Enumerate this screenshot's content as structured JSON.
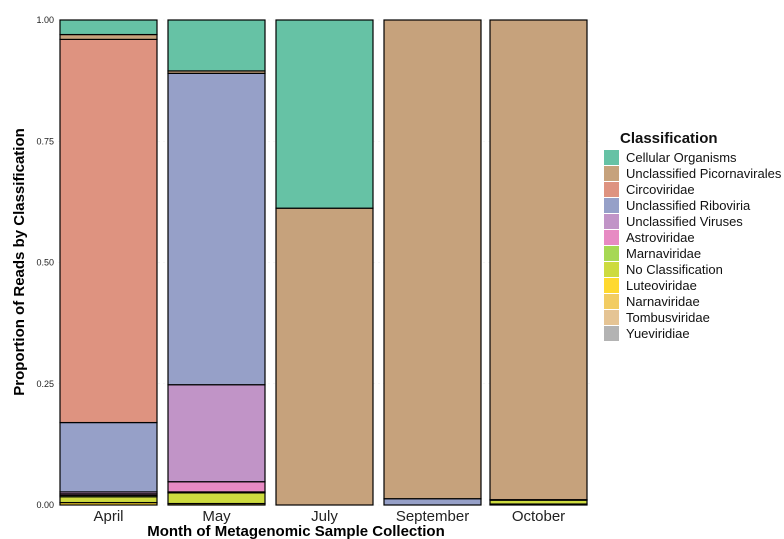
{
  "chart_data": {
    "type": "bar",
    "stacked": true,
    "xlabel": "Month of Metagenomic Sample Collection",
    "ylabel": "Proportion of Reads by Classification",
    "ylim": [
      0,
      1
    ],
    "yticks": [
      "0.00",
      "0.25",
      "0.50",
      "0.75",
      "1.00"
    ],
    "ytick_values": [
      0,
      0.25,
      0.5,
      0.75,
      1.0
    ],
    "grid": true,
    "legend_position": "right",
    "legend_title": "Classification",
    "categories": [
      "April",
      "May",
      "July",
      "September",
      "October"
    ],
    "series": [
      {
        "name": "Yueviridiae",
        "color": "#b3b3b3",
        "values": [
          0.0,
          0.0,
          0.0,
          0.0,
          0.0
        ]
      },
      {
        "name": "Tombusviridae",
        "color": "#e5c494",
        "values": [
          0.0,
          0.0,
          0.0,
          0.0,
          0.0
        ]
      },
      {
        "name": "Narnaviridae",
        "color": "#f2cc62",
        "values": [
          0.0,
          0.0,
          0.0,
          0.0,
          0.0
        ]
      },
      {
        "name": "Luteoviridae",
        "color": "#ffd92f",
        "values": [
          0.005,
          0.003,
          0.0,
          0.0,
          0.002
        ]
      },
      {
        "name": "No Classification",
        "color": "#cddb3f",
        "values": [
          0.012,
          0.022,
          0.0,
          0.0,
          0.008
        ]
      },
      {
        "name": "Marnaviridae",
        "color": "#a6d854",
        "values": [
          0.003,
          0.002,
          0.0,
          0.0,
          0.0
        ]
      },
      {
        "name": "Astroviridae",
        "color": "#e78ac3",
        "values": [
          0.003,
          0.021,
          0.0,
          0.0,
          0.0
        ]
      },
      {
        "name": "Unclassified Viruses",
        "color": "#c194c7",
        "values": [
          0.004,
          0.2,
          0.0,
          0.0,
          0.0
        ]
      },
      {
        "name": "Unclassified Riboviria",
        "color": "#96a0c8",
        "values": [
          0.143,
          0.642,
          0.0,
          0.013,
          0.001
        ]
      },
      {
        "name": "Circoviridae",
        "color": "#de9380",
        "values": [
          0.79,
          0.0,
          0.0,
          0.0,
          0.0
        ]
      },
      {
        "name": "Unclassified Picornavirales",
        "color": "#c6a27c",
        "values": [
          0.01,
          0.005,
          0.612,
          0.987,
          0.989
        ]
      },
      {
        "name": "Cellular Organisms",
        "color": "#66c2a5",
        "values": [
          0.03,
          0.105,
          0.388,
          0.0,
          0.0
        ]
      }
    ],
    "legend_order": [
      "Cellular Organisms",
      "Unclassified Picornavirales",
      "Circoviridae",
      "Unclassified Riboviria",
      "Unclassified Viruses",
      "Astroviridae",
      "Marnaviridae",
      "No Classification",
      "Luteoviridae",
      "Narnaviridae",
      "Tombusviridae",
      "Yueviridiae"
    ]
  }
}
